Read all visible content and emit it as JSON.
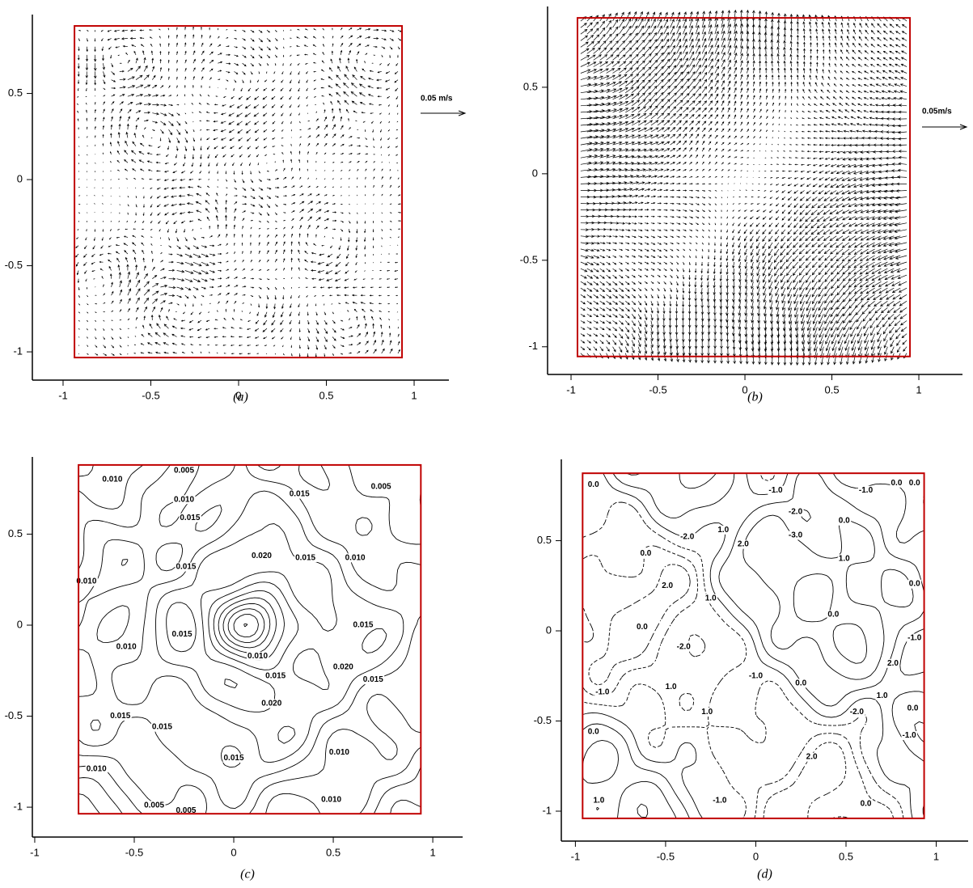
{
  "chart_data": [
    {
      "type": "quiver",
      "caption": "(a)",
      "reference_label": "0.05 m/s",
      "xlim": [
        -1.175,
        1.198
      ],
      "ylim": [
        -1.164,
        0.958
      ],
      "xticks": [
        -1,
        -0.5,
        0,
        0.5,
        1
      ],
      "yticks": [
        -1,
        -0.5,
        0,
        0.5
      ],
      "domain": {
        "x": [
          -0.935,
          0.931
        ],
        "y": [
          -1.033,
          0.892
        ]
      },
      "domain_color": "#c00000"
    },
    {
      "type": "quiver",
      "caption": "(b)",
      "reference_label": "0.05m/s",
      "xlim": [
        -1.135,
        1.251
      ],
      "ylim": [
        -1.16,
        0.967
      ],
      "xticks": [
        -1,
        -0.5,
        0,
        0.5,
        1
      ],
      "yticks": [
        -1,
        -0.5,
        0,
        0.5
      ],
      "domain": {
        "x": [
          -0.963,
          0.949
        ],
        "y": [
          -1.056,
          0.901
        ]
      },
      "domain_color": "#c00000"
    },
    {
      "type": "contour",
      "caption": "(c)",
      "xlim": [
        -1.012,
        1.15
      ],
      "ylim": [
        -1.164,
        0.924
      ],
      "xticks": [
        -1,
        -0.5,
        0,
        0.5,
        1
      ],
      "yticks": [
        -1,
        -0.5,
        0,
        0.5
      ],
      "domain": {
        "x": [
          -0.78,
          0.94
        ],
        "y": [
          -1.036,
          0.88
        ]
      },
      "domain_color": "#c00000",
      "contour_labels": [
        "0.005",
        "0.010",
        "0.010",
        "0.015",
        "0.005",
        "0.015",
        "0.015",
        "0.010",
        "0.010",
        "0.020",
        "0.015",
        "0.010",
        "0.015",
        "0.015",
        "0.020",
        "0.010",
        "0.015",
        "0.020",
        "0.015",
        "0.015",
        "0.015",
        "0.010",
        "0.010",
        "0.015",
        "0.010",
        "0.005",
        "0.005"
      ]
    },
    {
      "type": "contour",
      "caption": "(d)",
      "xlim": [
        -1.078,
        1.177
      ],
      "ylim": [
        -1.166,
        0.951
      ],
      "xticks": [
        -1,
        -0.5,
        0,
        0.5,
        1
      ],
      "yticks": [
        -1,
        -0.5,
        0,
        0.5
      ],
      "domain": {
        "x": [
          -0.96,
          0.933
        ],
        "y": [
          -1.04,
          0.874
        ]
      },
      "domain_color": "#c00000",
      "contour_labels": [
        "0.0",
        "0.0",
        "0.0",
        "-1.0",
        "-1.0",
        "-2.0",
        "1.0",
        "-3.0",
        "2.0",
        "0.0",
        "1.0",
        "-2.0",
        "0.0",
        "2.0",
        "1.0",
        "0.0",
        "0.0",
        "-2.0",
        "-1.0",
        "0.0",
        "2.0",
        "1.0",
        "0.0",
        "-1.0",
        "1.0",
        "1.0",
        "-1.0",
        "0.0",
        "-2.0",
        "-1.0",
        "0.0",
        "2.0",
        "1.0",
        "-1.0",
        "0.0"
      ]
    }
  ]
}
